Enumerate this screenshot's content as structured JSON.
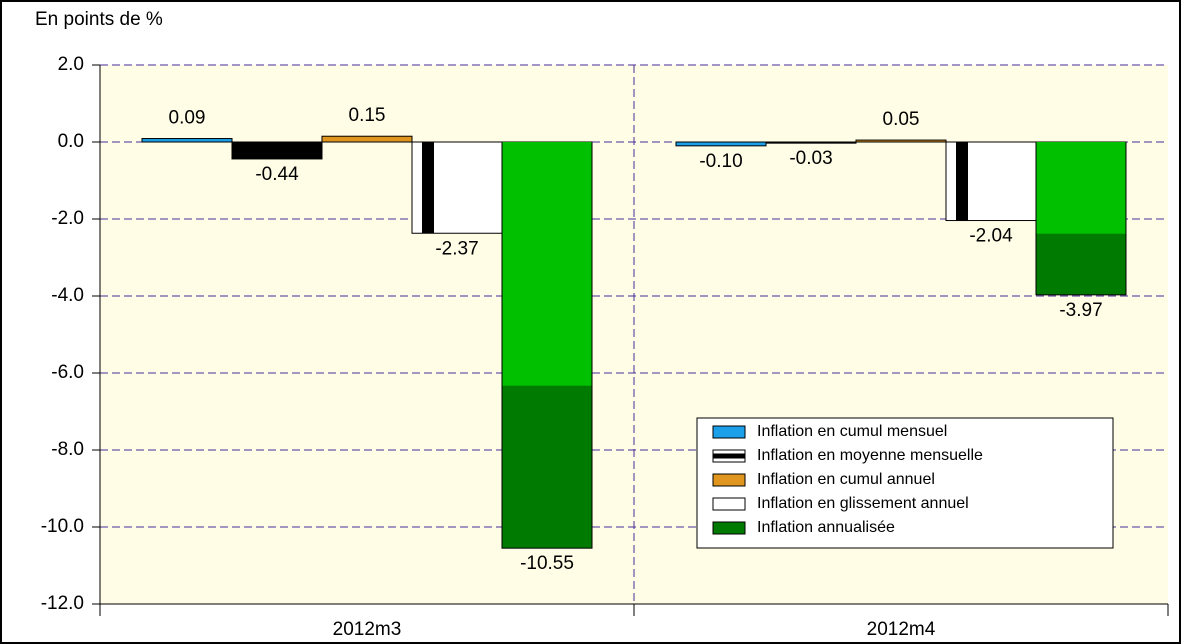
{
  "chart_data": {
    "type": "bar",
    "y_label": "En points de %",
    "categories": [
      "2012m3",
      "2012m4"
    ],
    "series": [
      {
        "name": "Inflation en cumul mensuel",
        "color": "#1a9fe8",
        "values": [
          0.09,
          -0.1
        ],
        "value_labels": [
          "0.09",
          "-0.10"
        ]
      },
      {
        "name": "Inflation en moyenne mensuelle",
        "color": "#000000",
        "values": [
          -0.44,
          -0.03
        ],
        "value_labels": [
          "-0.44",
          "-0.03"
        ]
      },
      {
        "name": "Inflation en cumul annuel",
        "color": "#e0961e",
        "values": [
          0.15,
          0.05
        ],
        "value_labels": [
          "0.15",
          "0.05"
        ]
      },
      {
        "name": "Inflation en glissement annuel",
        "color": "#ffffff",
        "values": [
          -2.37,
          -2.04
        ],
        "value_labels": [
          "-2.37",
          "-2.04"
        ]
      },
      {
        "name": "Inflation annualisée",
        "color": "#007a00",
        "values": [
          -10.55,
          -3.97
        ],
        "value_labels": [
          "-10.55",
          "-3.97"
        ]
      }
    ],
    "ylim": [
      -12,
      2
    ],
    "yticks": [
      {
        "value": -12,
        "label": "-12.0"
      },
      {
        "value": -10,
        "label": "-10.0"
      },
      {
        "value": -8,
        "label": "-8.0"
      },
      {
        "value": -6,
        "label": "-6.0"
      },
      {
        "value": -4,
        "label": "-4.0"
      },
      {
        "value": -2,
        "label": "-2.0"
      },
      {
        "value": 0,
        "label": "0.0"
      },
      {
        "value": 2,
        "label": "2.0"
      }
    ],
    "grid": true,
    "legend": "lower right"
  }
}
